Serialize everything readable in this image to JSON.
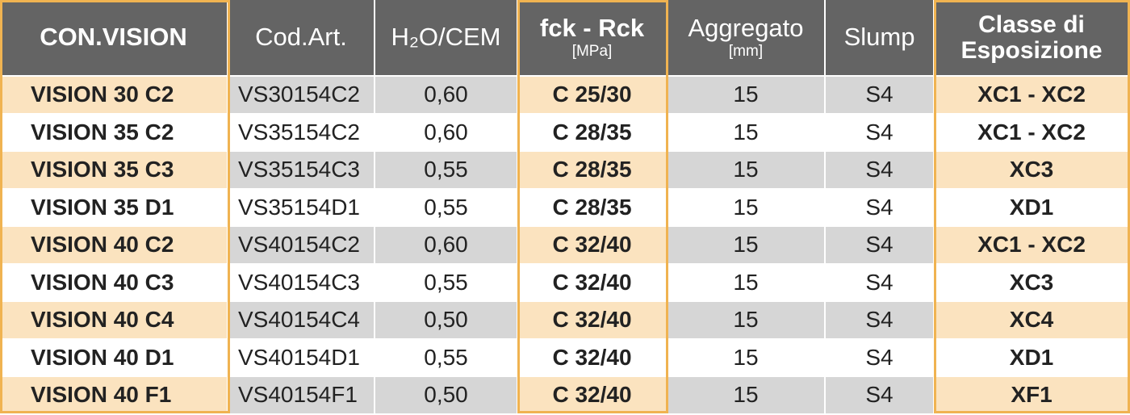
{
  "headers": {
    "name": "CON.VISION",
    "code": "Cod.Art.",
    "ratio": "H₂O/CEM",
    "strength": "fck - Rck",
    "strength_unit": "[MPa]",
    "aggregate": "Aggregato",
    "aggregate_unit": "[mm]",
    "slump": "Slump",
    "exposure_line1": "Classe di",
    "exposure_line2": "Esposizione"
  },
  "rows": [
    {
      "name": "VISION 30 C2",
      "code": "VS30154C2",
      "ratio": "0,60",
      "strength": "C 25/30",
      "aggregate": "15",
      "slump": "S4",
      "exposure": "XC1 - XC2"
    },
    {
      "name": "VISION 35 C2",
      "code": "VS35154C2",
      "ratio": "0,60",
      "strength": "C 28/35",
      "aggregate": "15",
      "slump": "S4",
      "exposure": "XC1 - XC2"
    },
    {
      "name": "VISION 35 C3",
      "code": "VS35154C3",
      "ratio": "0,55",
      "strength": "C 28/35",
      "aggregate": "15",
      "slump": "S4",
      "exposure": "XC3"
    },
    {
      "name": "VISION 35 D1",
      "code": "VS35154D1",
      "ratio": "0,55",
      "strength": "C 28/35",
      "aggregate": "15",
      "slump": "S4",
      "exposure": "XD1"
    },
    {
      "name": "VISION 40 C2",
      "code": "VS40154C2",
      "ratio": "0,60",
      "strength": "C 32/40",
      "aggregate": "15",
      "slump": "S4",
      "exposure": "XC1 - XC2"
    },
    {
      "name": "VISION 40 C3",
      "code": "VS40154C3",
      "ratio": "0,55",
      "strength": "C 32/40",
      "aggregate": "15",
      "slump": "S4",
      "exposure": "XC3"
    },
    {
      "name": "VISION 40 C4",
      "code": "VS40154C4",
      "ratio": "0,50",
      "strength": "C 32/40",
      "aggregate": "15",
      "slump": "S4",
      "exposure": "XC4"
    },
    {
      "name": "VISION 40 D1",
      "code": "VS40154D1",
      "ratio": "0,55",
      "strength": "C 32/40",
      "aggregate": "15",
      "slump": "S4",
      "exposure": "XD1"
    },
    {
      "name": "VISION 40 F1",
      "code": "VS40154F1",
      "ratio": "0,50",
      "strength": "C 32/40",
      "aggregate": "15",
      "slump": "S4",
      "exposure": "XF1"
    }
  ],
  "colors": {
    "header_bg": "#646464",
    "highlight_bg": "#fbe3bf",
    "gray_bg": "#d6d6d6",
    "frame": "#f0b351"
  }
}
